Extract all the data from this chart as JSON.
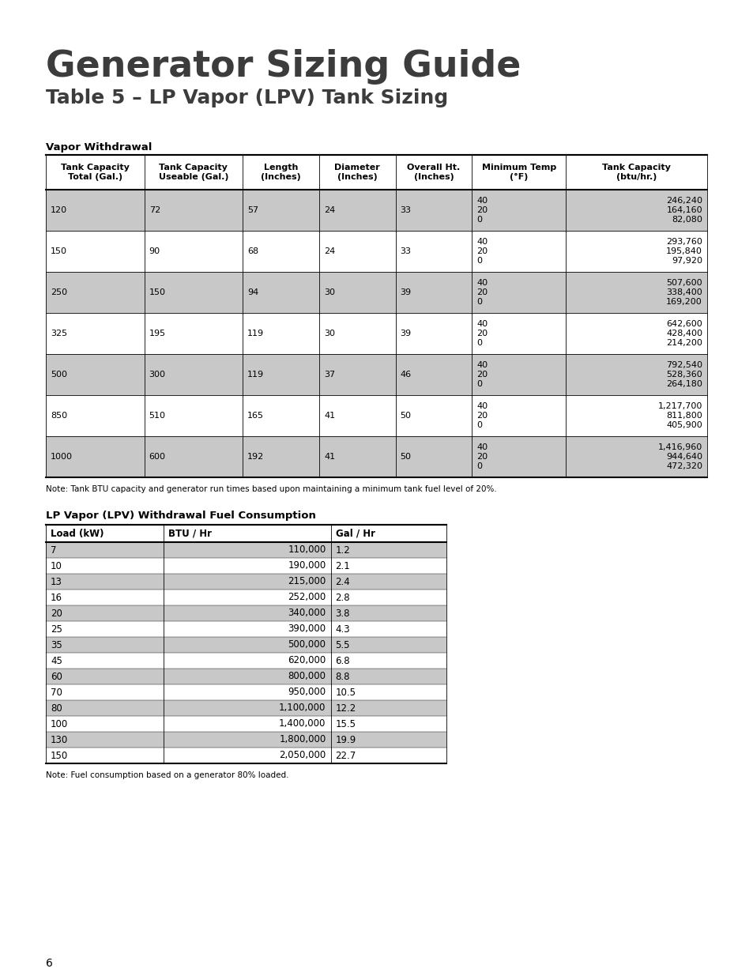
{
  "title_line1": "Generator Sizing Guide",
  "title_line2": "Table 5 – LP Vapor (LPV) Tank Sizing",
  "section1_title": "Vapor Withdrawal",
  "table1_headers": [
    "Tank Capacity\nTotal (Gal.)",
    "Tank Capacity\nUseable (Gal.)",
    "Length\n(Inches)",
    "Diameter\n(Inches)",
    "Overall Ht.\n(Inches)",
    "Minimum Temp\n(°F)",
    "Tank Capacity\n(btu/hr.)"
  ],
  "table1_data": [
    [
      "120",
      "72",
      "57",
      "24",
      "33",
      "40\n20\n0",
      "246,240\n164,160\n82,080"
    ],
    [
      "150",
      "90",
      "68",
      "24",
      "33",
      "40\n20\n0",
      "293,760\n195,840\n97,920"
    ],
    [
      "250",
      "150",
      "94",
      "30",
      "39",
      "40\n20\n0",
      "507,600\n338,400\n169,200"
    ],
    [
      "325",
      "195",
      "119",
      "30",
      "39",
      "40\n20\n0",
      "642,600\n428,400\n214,200"
    ],
    [
      "500",
      "300",
      "119",
      "37",
      "46",
      "40\n20\n0",
      "792,540\n528,360\n264,180"
    ],
    [
      "850",
      "510",
      "165",
      "41",
      "50",
      "40\n20\n0",
      "1,217,700\n811,800\n405,900"
    ],
    [
      "1000",
      "600",
      "192",
      "41",
      "50",
      "40\n20\n0",
      "1,416,960\n944,640\n472,320"
    ]
  ],
  "table1_shaded_rows": [
    0,
    2,
    4,
    6
  ],
  "table1_note": "Note: Tank BTU capacity and generator run times based upon maintaining a minimum tank fuel level of 20%.",
  "section2_title": "LP Vapor (LPV) Withdrawal Fuel Consumption",
  "table2_headers": [
    "Load (kW)",
    "BTU / Hr",
    "Gal / Hr"
  ],
  "table2_data": [
    [
      "7",
      "110,000",
      "1.2"
    ],
    [
      "10",
      "190,000",
      "2.1"
    ],
    [
      "13",
      "215,000",
      "2.4"
    ],
    [
      "16",
      "252,000",
      "2.8"
    ],
    [
      "20",
      "340,000",
      "3.8"
    ],
    [
      "25",
      "390,000",
      "4.3"
    ],
    [
      "35",
      "500,000",
      "5.5"
    ],
    [
      "45",
      "620,000",
      "6.8"
    ],
    [
      "60",
      "800,000",
      "8.8"
    ],
    [
      "70",
      "950,000",
      "10.5"
    ],
    [
      "80",
      "1,100,000",
      "12.2"
    ],
    [
      "100",
      "1,400,000",
      "15.5"
    ],
    [
      "130",
      "1,800,000",
      "19.9"
    ],
    [
      "150",
      "2,050,000",
      "22.7"
    ]
  ],
  "table2_shaded_rows": [
    0,
    2,
    4,
    6,
    8,
    10,
    12
  ],
  "table2_note": "Note: Fuel consumption based on a generator 80% loaded.",
  "page_number": "6",
  "shaded_color": "#c8c8c8",
  "bg_color": "#ffffff"
}
